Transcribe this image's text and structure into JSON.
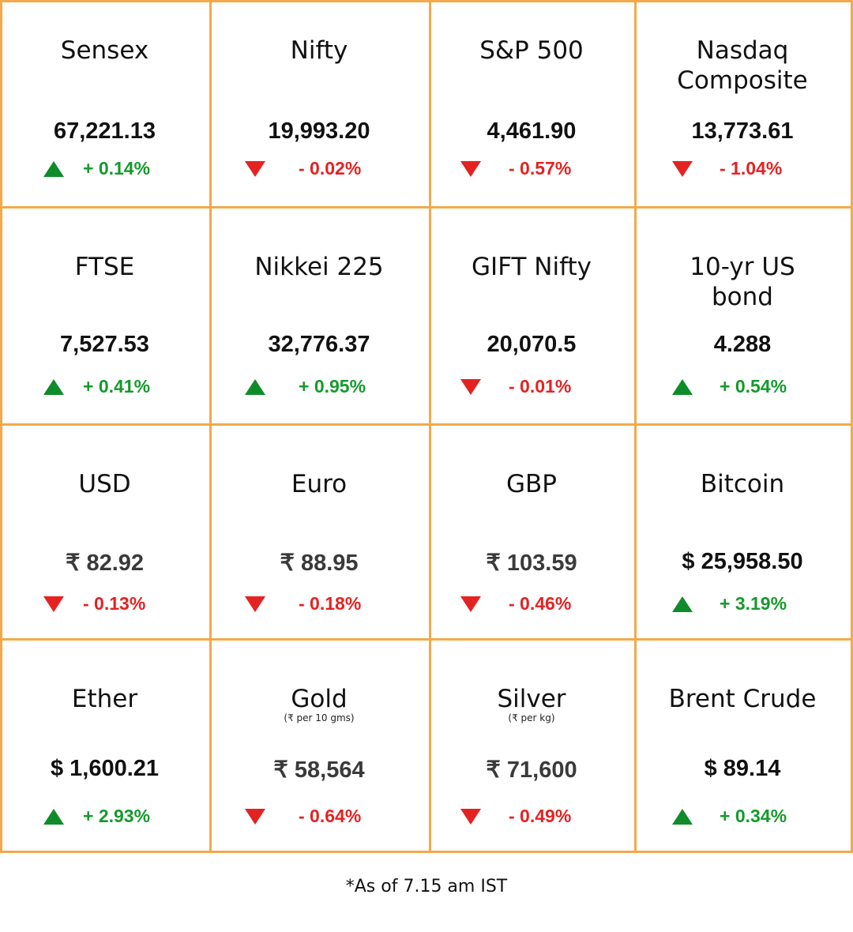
{
  "colors": {
    "border": "#f4a94a",
    "up": "#0f8c2a",
    "down": "#e52222"
  },
  "cells": [
    {
      "name": "Sensex",
      "sub": "",
      "value": "67,221.13",
      "change": "+ 0.14%",
      "dir": "up"
    },
    {
      "name": "Nifty",
      "sub": "",
      "value": "19,993.20",
      "change": "- 0.02%",
      "dir": "down"
    },
    {
      "name": "S&P 500",
      "sub": "",
      "value": "4,461.90",
      "change": "- 0.57%",
      "dir": "down"
    },
    {
      "name": "Nasdaq Composite",
      "sub": "",
      "value": "13,773.61",
      "change": "- 1.04%",
      "dir": "down"
    },
    {
      "name": "FTSE",
      "sub": "",
      "value": "7,527.53",
      "change": "+ 0.41%",
      "dir": "up"
    },
    {
      "name": "Nikkei 225",
      "sub": "",
      "value": "32,776.37",
      "change": "+ 0.95%",
      "dir": "up"
    },
    {
      "name": "GIFT Nifty",
      "sub": "",
      "value": "20,070.5",
      "change": "- 0.01%",
      "dir": "down"
    },
    {
      "name": "10-yr US bond",
      "sub": "",
      "value": "4.288",
      "change": "+ 0.54%",
      "dir": "up"
    },
    {
      "name": "USD",
      "sub": "",
      "value": "₹ 82.92",
      "change": "- 0.13%",
      "dir": "down"
    },
    {
      "name": "Euro",
      "sub": "",
      "value": "₹ 88.95",
      "change": "- 0.18%",
      "dir": "down"
    },
    {
      "name": "GBP",
      "sub": "",
      "value": "₹ 103.59",
      "change": "- 0.46%",
      "dir": "down"
    },
    {
      "name": "Bitcoin",
      "sub": "",
      "value": "$ 25,958.50",
      "change": "+ 3.19%",
      "dir": "up"
    },
    {
      "name": "Ether",
      "sub": "",
      "value": "$ 1,600.21",
      "change": "+ 2.93%",
      "dir": "up"
    },
    {
      "name": "Gold",
      "sub": "(₹ per 10 gms)",
      "value": "₹ 58,564",
      "change": "- 0.64%",
      "dir": "down"
    },
    {
      "name": "Silver",
      "sub": "(₹ per kg)",
      "value": "₹ 71,600",
      "change": "- 0.49%",
      "dir": "down"
    },
    {
      "name": "Brent Crude",
      "sub": "",
      "value": "$ 89.14",
      "change": "+ 0.34%",
      "dir": "up"
    }
  ],
  "footnote": "*As of 7.15 am IST"
}
